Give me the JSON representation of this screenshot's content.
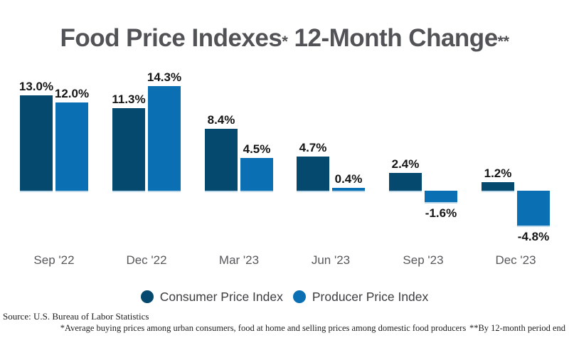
{
  "title": {
    "text_1": "Food Price Indexes",
    "asterisk_1": "*",
    "text_2": " 12-Month Change",
    "asterisk_2": "**",
    "color": "#525356"
  },
  "chart_data": {
    "type": "bar",
    "title": "Food Price Indexes* 12-Month Change**",
    "categories": [
      "Sep '22",
      "Dec '22",
      "Mar '23",
      "Jun '23",
      "Sep '23",
      "Dec '23"
    ],
    "series": [
      {
        "name": "Consumer Price Index",
        "color": "#05496f",
        "values": [
          13.0,
          11.3,
          8.4,
          4.7,
          2.4,
          1.2
        ],
        "labels": [
          "13.0%",
          "11.3%",
          "8.4%",
          "4.7%",
          "2.4%",
          "1.2%"
        ]
      },
      {
        "name": "Producer Price Index",
        "color": "#0b6fb4",
        "values": [
          12.0,
          14.3,
          4.5,
          0.4,
          -1.6,
          -4.8
        ],
        "labels": [
          "12.0%",
          "14.3%",
          "4.5%",
          "0.4%",
          "-1.6%",
          "-4.8%"
        ]
      }
    ],
    "xlabel": "",
    "ylabel": "",
    "ylim": [
      -4.8,
      14.3
    ],
    "grid": false,
    "value_labels_shown": true,
    "legend_position": "bottom",
    "bar_under_edge_color": "#bdd7eb"
  },
  "legend": {
    "items": [
      {
        "label": "Consumer Price Index",
        "color": "#05496f"
      },
      {
        "label": "Producer Price Index",
        "color": "#0b6fb4"
      }
    ]
  },
  "footer": {
    "source": "Source: U.S. Bureau of Labor Statistics",
    "note_1": "*Average buying prices among urban consumers, food at home and selling prices among domestic food producers",
    "note_2": "**By 12-month period end"
  }
}
